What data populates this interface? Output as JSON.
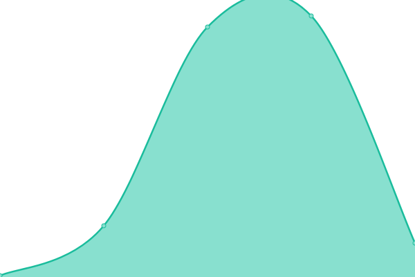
{
  "chart_data": {
    "type": "area",
    "categories": [
      null,
      null,
      null,
      null,
      null
    ],
    "values": [
      2,
      74,
      361,
      377,
      49
    ],
    "color": "#1abc9c",
    "fill": "#88e0cf",
    "ylim": [
      0,
      400
    ]
  }
}
